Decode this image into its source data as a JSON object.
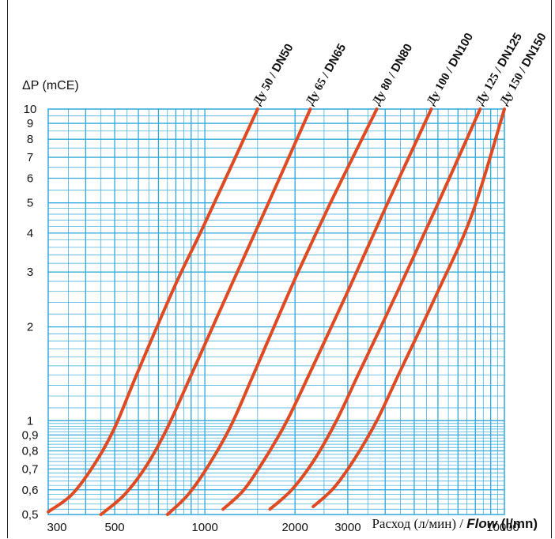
{
  "chart_data": {
    "type": "line",
    "x_scale": "log",
    "y_scale": "log",
    "xlim": [
      300,
      10000
    ],
    "ylim": [
      0.5,
      10
    ],
    "ylabel": "ΔP (mCE)",
    "xlabel_ru": "Расход (л/мин)",
    "xlabel_sep": " / ",
    "xlabel_en": "Flow",
    "xlabel_unit": " (l/mn)",
    "x_ticks": [
      {
        "value": 300,
        "label": "300"
      },
      {
        "value": 500,
        "label": "500"
      },
      {
        "value": 1000,
        "label": "1000"
      },
      {
        "value": 2000,
        "label": "2000"
      },
      {
        "value": 3000,
        "label": "3000"
      },
      {
        "value": 10000,
        "label": "10000"
      }
    ],
    "y_ticks": [
      {
        "value": 0.5,
        "label": "0,5"
      },
      {
        "value": 0.6,
        "label": "0,6"
      },
      {
        "value": 0.7,
        "label": "0,7"
      },
      {
        "value": 0.8,
        "label": "0,8"
      },
      {
        "value": 0.9,
        "label": "0,9"
      },
      {
        "value": 1,
        "label": "1"
      },
      {
        "value": 2,
        "label": "2"
      },
      {
        "value": 3,
        "label": "3"
      },
      {
        "value": 4,
        "label": "4"
      },
      {
        "value": 5,
        "label": "5"
      },
      {
        "value": 6,
        "label": "6"
      },
      {
        "value": 7,
        "label": "7"
      },
      {
        "value": 8,
        "label": "8"
      },
      {
        "value": 9,
        "label": "9"
      },
      {
        "value": 10,
        "label": "10"
      }
    ],
    "grid": true,
    "grid_color": "#2fa8dc",
    "line_color": "#e04a22",
    "series": [
      {
        "name_ru": "Ду 50",
        "name_en": "DN50",
        "points": [
          [
            300,
            0.51
          ],
          [
            360,
            0.58
          ],
          [
            430,
            0.73
          ],
          [
            500,
            0.95
          ],
          [
            600,
            1.45
          ],
          [
            800,
            2.75
          ],
          [
            1000,
            4.3
          ],
          [
            1500,
            10
          ]
        ]
      },
      {
        "name_ru": "Ду 65",
        "name_en": "DN65",
        "points": [
          [
            450,
            0.5
          ],
          [
            540,
            0.58
          ],
          [
            640,
            0.72
          ],
          [
            750,
            0.95
          ],
          [
            900,
            1.4
          ],
          [
            1200,
            2.6
          ],
          [
            1600,
            4.8
          ],
          [
            2250,
            10
          ]
        ]
      },
      {
        "name_ru": "Ду 80",
        "name_en": "DN80",
        "points": [
          [
            750,
            0.5
          ],
          [
            880,
            0.58
          ],
          [
            1030,
            0.72
          ],
          [
            1220,
            0.96
          ],
          [
            1450,
            1.4
          ],
          [
            1950,
            2.7
          ],
          [
            2600,
            4.9
          ],
          [
            3750,
            10
          ]
        ]
      },
      {
        "name_ru": "Ду 100",
        "name_en": "DN100",
        "points": [
          [
            1150,
            0.52
          ],
          [
            1350,
            0.6
          ],
          [
            1580,
            0.75
          ],
          [
            1880,
            1.0
          ],
          [
            2300,
            1.5
          ],
          [
            3000,
            2.6
          ],
          [
            4000,
            4.8
          ],
          [
            5700,
            10
          ]
        ]
      },
      {
        "name_ru": "Ду 125",
        "name_en": "DN125",
        "points": [
          [
            1650,
            0.52
          ],
          [
            1950,
            0.6
          ],
          [
            2300,
            0.74
          ],
          [
            2750,
            1.0
          ],
          [
            3300,
            1.45
          ],
          [
            4400,
            2.6
          ],
          [
            5900,
            4.8
          ],
          [
            8300,
            10
          ]
        ]
      },
      {
        "name_ru": "Ду 150",
        "name_en": "DN150",
        "points": [
          [
            2300,
            0.53
          ],
          [
            2700,
            0.61
          ],
          [
            3150,
            0.75
          ],
          [
            3750,
            1.0
          ],
          [
            4500,
            1.45
          ],
          [
            6000,
            2.6
          ],
          [
            7800,
            4.6
          ],
          [
            10000,
            10
          ]
        ]
      }
    ]
  }
}
